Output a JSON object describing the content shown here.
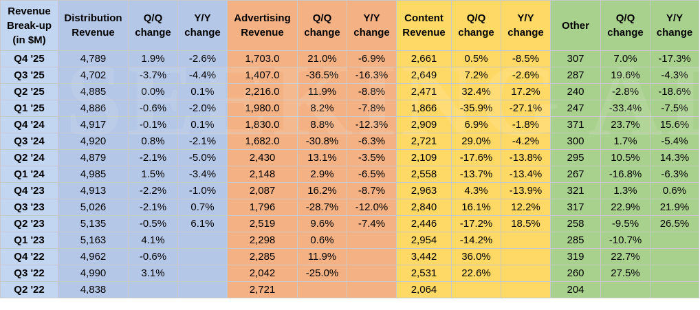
{
  "header": {
    "label": "Revenue Break-up (in $M)",
    "distribution": "Distribution Revenue",
    "dist_qq": "Q/Q change",
    "dist_yy": "Y/Y change",
    "advertising": "Advertising Revenue",
    "adv_qq": "Q/Q change",
    "adv_yy": "Y/Y change",
    "content": "Content Revenue",
    "cont_qq": "Q/Q change",
    "cont_yy": "Y/Y change",
    "other": "Other",
    "oth_qq": "Q/Q change",
    "oth_yy": "Y/Y change"
  },
  "colors": {
    "label": "#c2d6f2",
    "distribution": "#b4c7e7",
    "advertising": "#f4b183",
    "content": "#ffd966",
    "other": "#a9d18e"
  },
  "rows": [
    [
      "Q4 '25",
      "4,789",
      "1.9%",
      "-2.6%",
      "1,703.0",
      "21.0%",
      "-6.9%",
      "2,661",
      "0.5%",
      "-8.5%",
      "307",
      "7.0%",
      "-17.3%"
    ],
    [
      "Q3 '25",
      "4,702",
      "-3.7%",
      "-4.4%",
      "1,407.0",
      "-36.5%",
      "-16.3%",
      "2,649",
      "7.2%",
      "-2.6%",
      "287",
      "19.6%",
      "-4.3%"
    ],
    [
      "Q2 '25",
      "4,885",
      "0.0%",
      "0.1%",
      "2,216.0",
      "11.9%",
      "-8.8%",
      "2,471",
      "32.4%",
      "17.2%",
      "240",
      "-2.8%",
      "-18.6%"
    ],
    [
      "Q1 '25",
      "4,886",
      "-0.6%",
      "-2.0%",
      "1,980.0",
      "8.2%",
      "-7.8%",
      "1,866",
      "-35.9%",
      "-27.1%",
      "247",
      "-33.4%",
      "-7.5%"
    ],
    [
      "Q4 '24",
      "4,917",
      "-0.1%",
      "0.1%",
      "1,830.0",
      "8.8%",
      "-12.3%",
      "2,909",
      "6.9%",
      "-1.8%",
      "371",
      "23.7%",
      "15.6%"
    ],
    [
      "Q3 '24",
      "4,920",
      "0.8%",
      "-2.1%",
      "1,682.0",
      "-30.8%",
      "-6.3%",
      "2,721",
      "29.0%",
      "-4.2%",
      "300",
      "1.7%",
      "-5.4%"
    ],
    [
      "Q2 '24",
      "4,879",
      "-2.1%",
      "-5.0%",
      "2,430",
      "13.1%",
      "-3.5%",
      "2,109",
      "-17.6%",
      "-13.8%",
      "295",
      "10.5%",
      "14.3%"
    ],
    [
      "Q1 '24",
      "4,985",
      "1.5%",
      "-3.4%",
      "2,148",
      "2.9%",
      "-6.5%",
      "2,558",
      "-13.7%",
      "-13.4%",
      "267",
      "-16.8%",
      "-6.3%"
    ],
    [
      "Q4 '23",
      "4,913",
      "-2.2%",
      "-1.0%",
      "2,087",
      "16.2%",
      "-8.7%",
      "2,963",
      "4.3%",
      "-13.9%",
      "321",
      "1.3%",
      "0.6%"
    ],
    [
      "Q3 '23",
      "5,026",
      "-2.1%",
      "0.7%",
      "1,796",
      "-28.7%",
      "-12.0%",
      "2,840",
      "16.1%",
      "12.2%",
      "317",
      "22.9%",
      "21.9%"
    ],
    [
      "Q2 '23",
      "5,135",
      "-0.5%",
      "6.1%",
      "2,519",
      "9.6%",
      "-7.4%",
      "2,446",
      "-17.2%",
      "18.5%",
      "258",
      "-9.5%",
      "26.5%"
    ],
    [
      "Q1 '23",
      "5,163",
      "4.1%",
      "",
      "2,298",
      "0.6%",
      "",
      "2,954",
      "-14.2%",
      "",
      "285",
      "-10.7%",
      ""
    ],
    [
      "Q4 '22",
      "4,962",
      "-0.6%",
      "",
      "2,285",
      "11.9%",
      "",
      "3,442",
      "36.0%",
      "",
      "319",
      "22.7%",
      ""
    ],
    [
      "Q3 '22",
      "4,990",
      "3.1%",
      "",
      "2,042",
      "-25.0%",
      "",
      "2,531",
      "22.6%",
      "",
      "260",
      "27.5%",
      ""
    ],
    [
      "Q2 '22",
      "4,838",
      "",
      "",
      "2,721",
      "",
      "",
      "2,064",
      "",
      "",
      "204",
      "",
      ""
    ]
  ]
}
